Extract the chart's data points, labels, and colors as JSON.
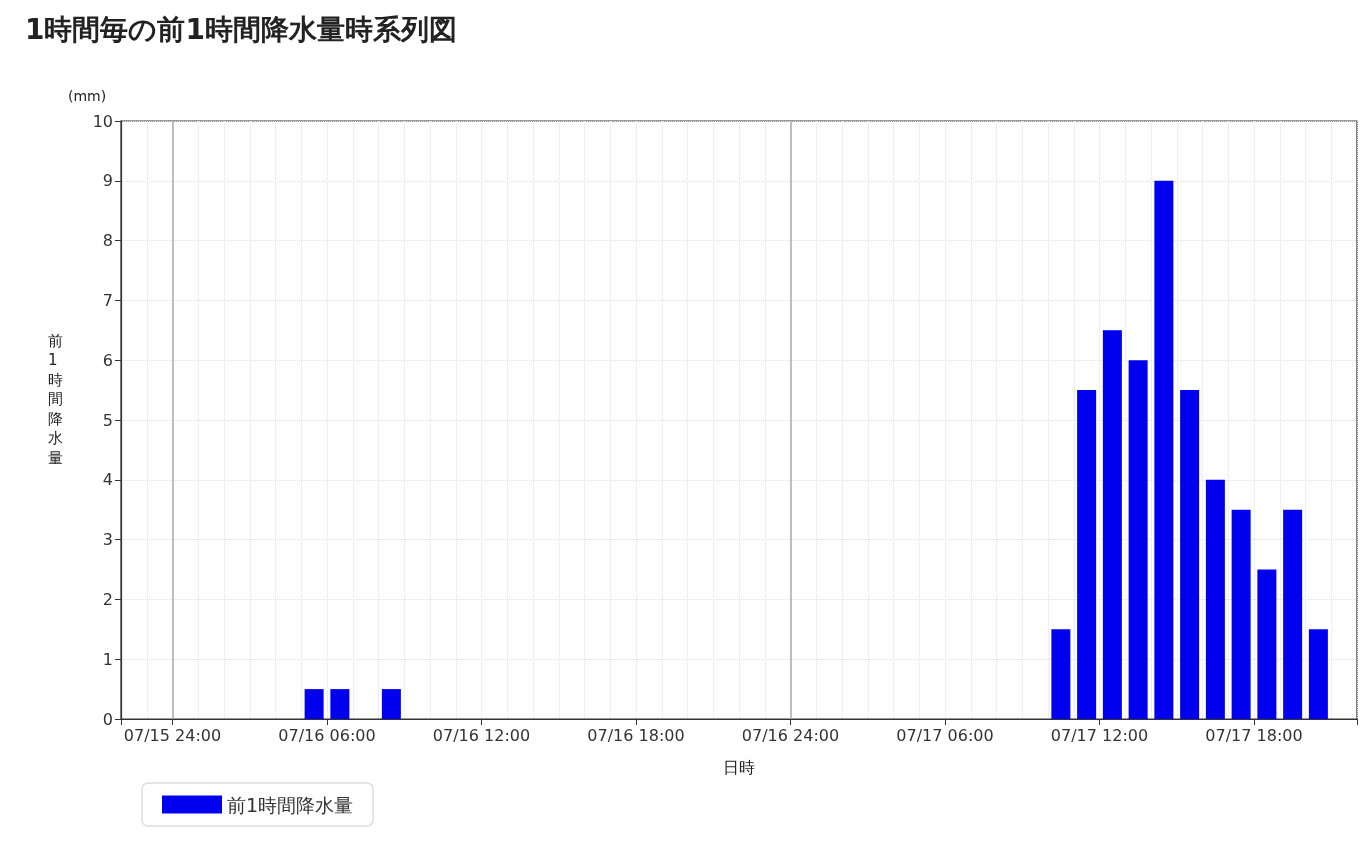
{
  "chart_data": {
    "type": "bar",
    "title": "1時間毎の前1時間降水量時系列図",
    "xlabel": "日時",
    "ylabel": "前1時間降水量",
    "annotations": [
      "(mm)"
    ],
    "x": [
      "--07-16T05:30",
      "--07-16T06:30",
      "--07-16T08:30",
      "--07-17T10:30",
      "--07-17T11:30",
      "--07-17T12:30",
      "--07-17T13:30",
      "--07-17T14:30",
      "--07-17T15:30",
      "--07-17T16:30",
      "--07-17T17:30",
      "--07-17T18:30",
      "--07-17T19:30",
      "--07-17T20:30"
    ],
    "series": [
      {
        "name": "前1時間降水量",
        "color": "#0000ee",
        "values": [
          0.5,
          0.5,
          0.5,
          1.5,
          5.5,
          6.5,
          6,
          9,
          5.5,
          4,
          3.5,
          2.5,
          3.5,
          1.5
        ]
      }
    ],
    "xlim": [
      "--07-15T22:00",
      "--07-17T22:00"
    ],
    "xticks": [
      {
        "value": "--07-15T22:00",
        "label": null
      },
      {
        "value": "--07-16T00:00",
        "label": "07/15 24:00"
      },
      {
        "value": "--07-16T06:00",
        "label": "07/16 06:00"
      },
      {
        "value": "--07-16T12:00",
        "label": "07/16 12:00"
      },
      {
        "value": "--07-16T18:00",
        "label": "07/16 18:00"
      },
      {
        "value": "--07-17T00:00",
        "label": "07/16 24:00"
      },
      {
        "value": "--07-17T06:00",
        "label": "07/17 06:00"
      },
      {
        "value": "--07-17T12:00",
        "label": "07/17 12:00"
      },
      {
        "value": "--07-17T18:00",
        "label": "07/17 18:00"
      },
      {
        "value": "--07-17T22:00",
        "label": null
      }
    ],
    "ylim": [
      0,
      10
    ],
    "yticks": [
      0,
      1,
      2,
      3,
      4,
      5,
      6,
      7,
      8,
      9,
      10
    ],
    "ref_lines": [
      {
        "axis": "x",
        "value": "--07-15T24:00",
        "color": "#aaaaaa"
      },
      {
        "axis": "x",
        "value": "--07-16T24:00",
        "color": "#aaaaaa"
      }
    ],
    "grid": true,
    "legend": "bottom left"
  }
}
